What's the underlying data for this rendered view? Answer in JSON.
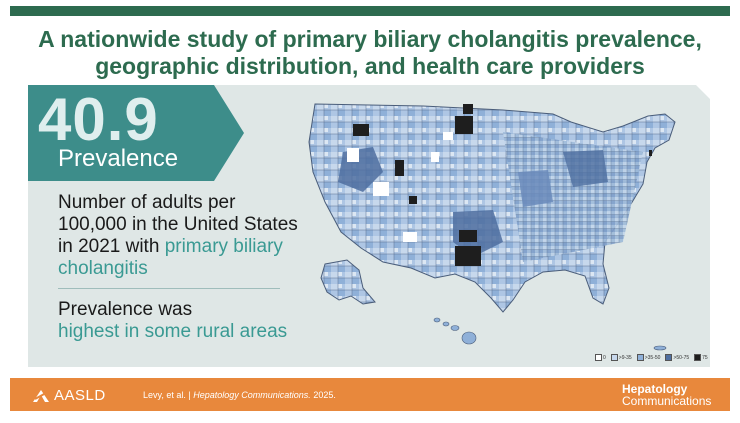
{
  "title": {
    "line1": "A nationwide study of primary biliary cholangitis prevalence,",
    "line2": "geographic distribution, and health care providers"
  },
  "highlight": {
    "number": "40.9",
    "label": "Prevalence"
  },
  "description": {
    "main": "Number of adults per 100,000 in the United States in 2021 with",
    "accent": "primary biliary cholangitis"
  },
  "note": {
    "main": "Prevalence was",
    "accent": "highest in some rural areas"
  },
  "legend": [
    {
      "label": "0",
      "color": "#ffffff"
    },
    {
      "label": ">9-35",
      "color": "#c7d8ec"
    },
    {
      "label": ">35-50",
      "color": "#8fb0d8"
    },
    {
      "label": ">50-75",
      "color": "#4f6fa0"
    },
    {
      "label": "75",
      "color": "#1e1e1e"
    }
  ],
  "footer": {
    "org": "AASLD",
    "authors": "Levy, et al.",
    "separator": "|",
    "journal": "Hepatology Communications.",
    "year": "2025.",
    "journal_line1": "Hepatology",
    "journal_line2": "Communications"
  },
  "colors": {
    "green": "#2d6b4f",
    "teal": "#3d8d8a",
    "accent": "#3a9a93",
    "orange": "#e8883c",
    "panel": "#dfe7e6"
  }
}
